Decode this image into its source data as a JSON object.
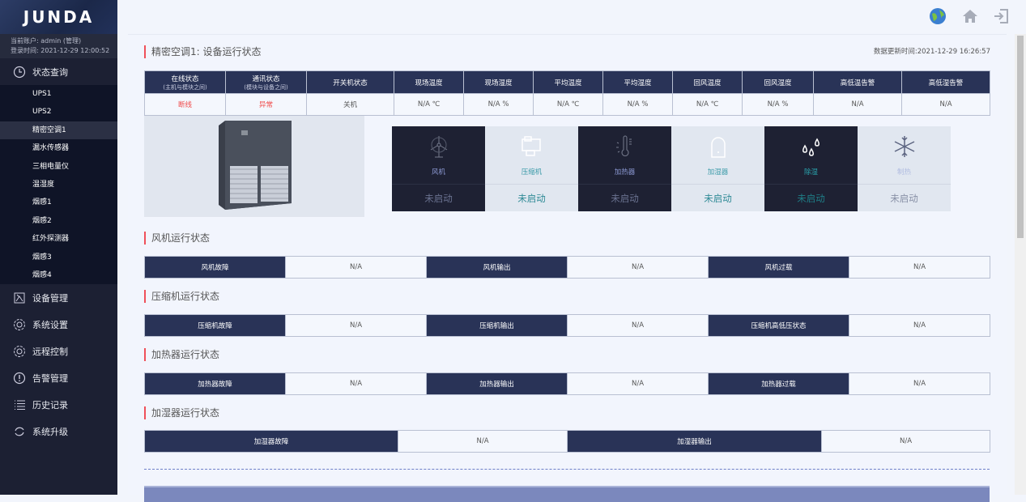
{
  "brand": "JUNDA",
  "account": {
    "user": "当前账户: admin (管理)",
    "login": "登录时间: 2021-12-29 12:00:52"
  },
  "nav": {
    "status": {
      "label": "状态查询",
      "children": [
        "UPS1",
        "UPS2",
        "精密空调1",
        "漏水传感器",
        "三相电量仪",
        "温湿度",
        "烟感1",
        "烟感2",
        "红外探测器",
        "烟感3",
        "烟感4"
      ],
      "active": "精密空调1"
    },
    "items": [
      {
        "label": "设备管理",
        "icon": "device-icon"
      },
      {
        "label": "系统设置",
        "icon": "gear-icon"
      },
      {
        "label": "远程控制",
        "icon": "gear-icon"
      },
      {
        "label": "告警管理",
        "icon": "alert-icon"
      },
      {
        "label": "历史记录",
        "icon": "list-icon"
      },
      {
        "label": "系统升级",
        "icon": "refresh-icon"
      }
    ]
  },
  "topbar": {
    "icons": [
      "globe-icon",
      "home-icon",
      "logout-icon"
    ]
  },
  "main": {
    "title": "精密空调1: 设备运行状态",
    "updated": "数据更新时间:2021-12-29 16:26:57",
    "status_table": {
      "headers": [
        [
          "在线状态",
          "(主机与模块之间)"
        ],
        [
          "通讯状态",
          "(模块与设备之间)"
        ],
        [
          "开关机状态",
          ""
        ],
        [
          "现场温度",
          ""
        ],
        [
          "现场湿度",
          ""
        ],
        [
          "平均温度",
          ""
        ],
        [
          "平均湿度",
          ""
        ],
        [
          "回风温度",
          ""
        ],
        [
          "回风湿度",
          ""
        ],
        [
          "高低温告警",
          ""
        ],
        [
          "高低湿告警",
          ""
        ]
      ],
      "values": [
        "断线",
        "异常",
        "关机",
        "N/A ℃",
        "N/A %",
        "N/A ℃",
        "N/A %",
        "N/A ℃",
        "N/A %",
        "N/A",
        "N/A"
      ]
    },
    "tiles": [
      {
        "name": "风机",
        "status": "未启动",
        "icon": "fan-icon",
        "theme": "dark",
        "name_color": "#8e9bd6",
        "status_color": "#6a7290"
      },
      {
        "name": "压缩机",
        "status": "未启动",
        "icon": "compressor-icon",
        "theme": "light",
        "name_color": "#3a9aa8",
        "status_color": "#2f8a96"
      },
      {
        "name": "加热器",
        "status": "未启动",
        "icon": "heater-icon",
        "theme": "dark",
        "name_color": "#8e9bd6",
        "status_color": "#6a7290"
      },
      {
        "name": "加湿器",
        "status": "未启动",
        "icon": "humidifier-icon",
        "theme": "light",
        "name_color": "#3a9aa8",
        "status_color": "#2f8a96"
      },
      {
        "name": "除湿",
        "status": "未启动",
        "icon": "dehumidify-icon",
        "theme": "dark",
        "name_color": "#2aa3ad",
        "status_color": "#1f7d86"
      },
      {
        "name": "制热",
        "status": "未启动",
        "icon": "snowflake-icon",
        "theme": "light",
        "name_color": "#b0bce0",
        "status_color": "#8890a6"
      }
    ],
    "sections": [
      {
        "title": "风机运行状态",
        "rows": [
          [
            "风机故障",
            "N/A"
          ],
          [
            "风机输出",
            "N/A"
          ],
          [
            "风机过载",
            "N/A"
          ]
        ]
      },
      {
        "title": "压缩机运行状态",
        "rows": [
          [
            "压缩机故障",
            "N/A"
          ],
          [
            "压缩机输出",
            "N/A"
          ],
          [
            "压缩机高低压状态",
            "N/A"
          ]
        ]
      },
      {
        "title": "加热器运行状态",
        "rows": [
          [
            "加热器故障",
            "N/A"
          ],
          [
            "加热器输出",
            "N/A"
          ],
          [
            "加热器过载",
            "N/A"
          ]
        ]
      },
      {
        "title": "加湿器运行状态",
        "rows": [
          [
            "加湿器故障",
            "N/A"
          ],
          [
            "加湿器输出",
            "N/A"
          ]
        ]
      }
    ]
  }
}
